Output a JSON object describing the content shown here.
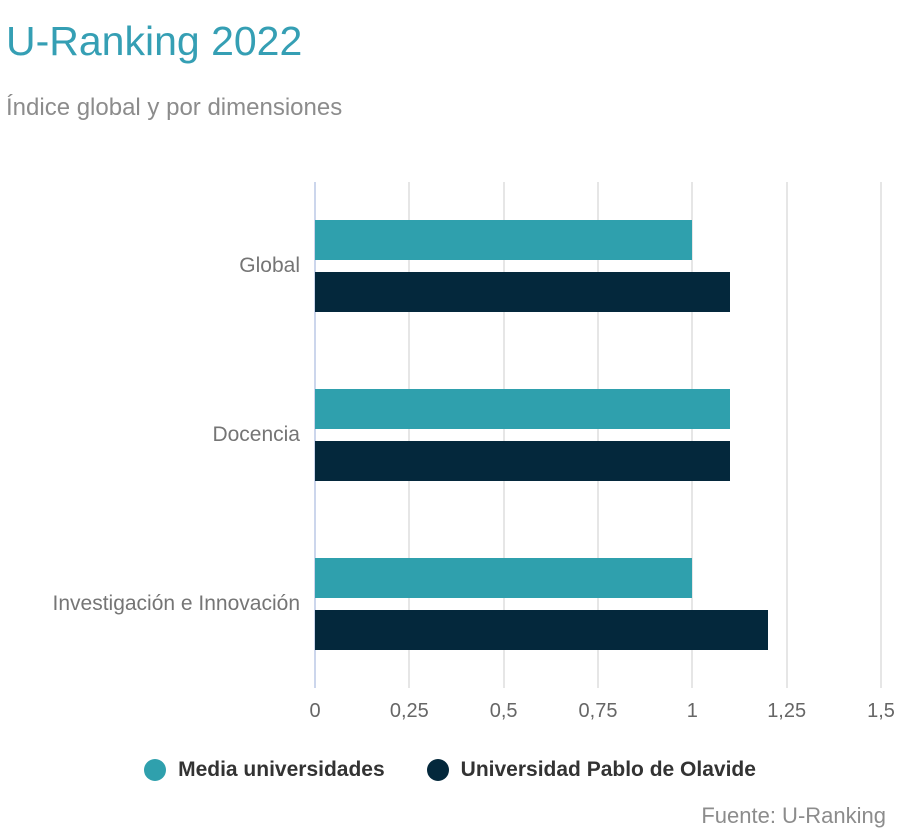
{
  "title": "U-Ranking 2022",
  "subtitle": "Índice global y por dimensiones",
  "source": "Fuente: U-Ranking",
  "colors": {
    "title_accent": "#359FB4",
    "series_media": "#2FA0AD",
    "series_upo": "#04283C",
    "gridline": "#E6E6E6",
    "zero_axis_line": "#CCD6EC",
    "subtitle_text": "#8C8C8C",
    "category_text": "#757575",
    "tick_text": "#666666",
    "legend_text": "#333333"
  },
  "chart_data": {
    "type": "bar",
    "orientation": "horizontal",
    "title": "U-Ranking 2022",
    "subtitle": "Índice global y por dimensiones",
    "categories": [
      "Global",
      "Docencia",
      "Investigación e Innovación"
    ],
    "series": [
      {
        "name": "Media universidades",
        "color": "#2FA0AD",
        "values": [
          1.0,
          1.1,
          1.0
        ]
      },
      {
        "name": "Universidad Pablo de Olavide",
        "color": "#04283C",
        "values": [
          1.1,
          1.1,
          1.2
        ]
      }
    ],
    "xlabel": "",
    "ylabel": "",
    "xlim": [
      0,
      1.5
    ],
    "xticks": [
      0,
      0.25,
      0.5,
      0.75,
      1,
      1.25,
      1.5
    ],
    "xtick_labels": [
      "0",
      "0,25",
      "0,5",
      "0,75",
      "1",
      "1,25",
      "1,5"
    ],
    "grid": true,
    "legend_position": "bottom",
    "source_note": "Fuente: U-Ranking"
  }
}
